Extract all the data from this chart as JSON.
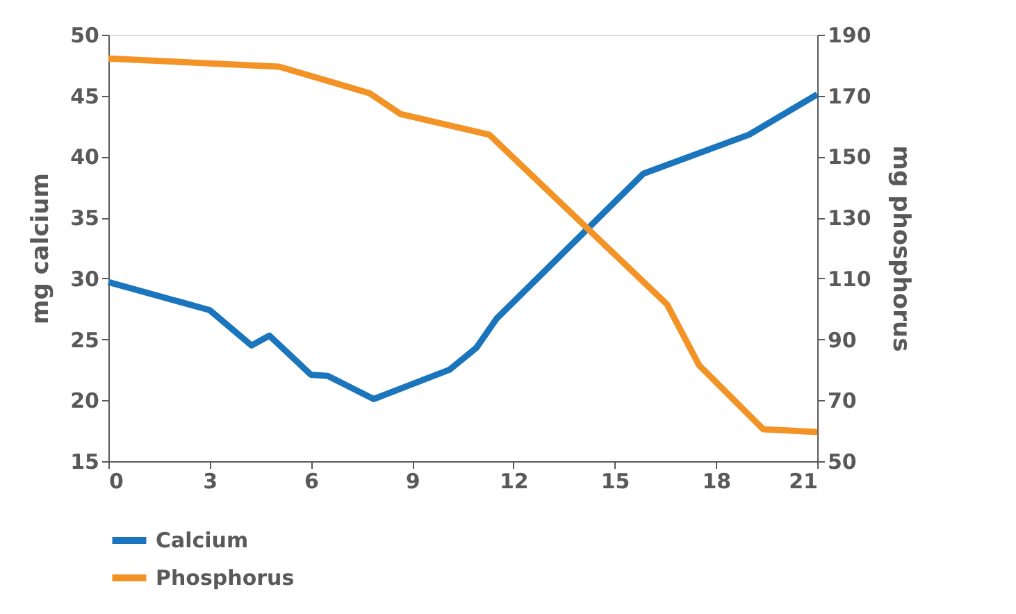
{
  "chart_data": {
    "type": "line",
    "xlabel": null,
    "ylabel": "mg calcium",
    "y2label": "mg phosphorus",
    "legend": "bottom left",
    "grid": false,
    "marker": "none",
    "line_style": "solid",
    "xlim": [
      0,
      21
    ],
    "xticks": [
      0,
      3,
      6,
      9,
      12,
      15,
      18,
      21
    ],
    "ylim": [
      15,
      50
    ],
    "yticks": [
      15,
      20,
      25,
      30,
      35,
      40,
      45,
      50
    ],
    "y2lim": [
      50,
      190
    ],
    "y2ticks": [
      50,
      70,
      90,
      110,
      130,
      150,
      170,
      190
    ],
    "series": [
      {
        "name": "Calcium",
        "color": "#1a75bc",
        "x": [
          0,
          3.0,
          4.24,
          4.77,
          6.0,
          6.5,
          7.86,
          10.1,
          10.9,
          11.5,
          15.85,
          18.98,
          21
        ],
        "values": [
          29.7,
          27.4,
          24.5,
          25.3,
          22.1,
          22.0,
          20.1,
          22.5,
          24.3,
          26.7,
          38.6,
          41.8,
          45.1
        ]
      },
      {
        "name": "Phosphorus",
        "color": "#f39325",
        "axis": "y2",
        "x": [
          0,
          5.06,
          7.74,
          8.65,
          11.28,
          16.55,
          17.5,
          19.4,
          21
        ],
        "values": [
          182.2,
          179.5,
          170.8,
          164,
          157.2,
          101.5,
          81.5,
          60.5,
          59.6
        ]
      }
    ]
  }
}
